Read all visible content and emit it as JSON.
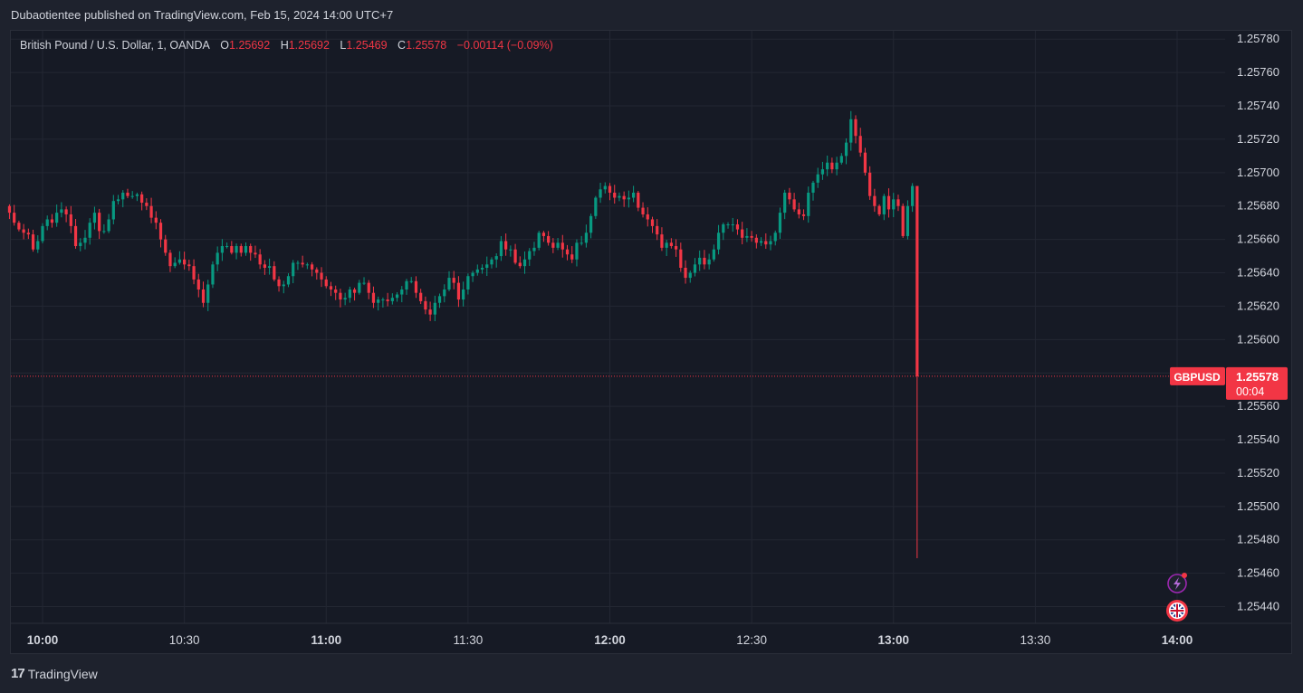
{
  "header": {
    "publisher_line": "Dubaotientee published on TradingView.com, Feb 15, 2024 14:00 UTC+7"
  },
  "legend": {
    "symbol_line": "British Pound / U.S. Dollar, 1, OANDA",
    "o_label": "O",
    "o_value": "1.25692",
    "h_label": "H",
    "h_value": "1.25692",
    "l_label": "L",
    "l_value": "1.25469",
    "c_label": "C",
    "c_value": "1.25578",
    "change": "−0.00114 (−0.09%)"
  },
  "price_label": {
    "ticker": "GBPUSD",
    "price": "1.25578",
    "countdown": "00:04"
  },
  "footer": {
    "brand": "TradingView",
    "brand_mark": "17"
  },
  "colors": {
    "up": "#089981",
    "down": "#f23645",
    "background": "#161a25",
    "grid": "#232733",
    "text": "#d1d4dc",
    "last_price_line": "#f23645"
  },
  "icons": [
    "flash-alert-icon",
    "uk-flag-icon"
  ],
  "chart_data": {
    "type": "candlestick",
    "symbol": "GBPUSD",
    "interval": "1",
    "ylim": [
      1.2543,
      1.25785
    ],
    "y_ticks": [
      "1.25780",
      "1.25760",
      "1.25740",
      "1.25720",
      "1.25700",
      "1.25680",
      "1.25660",
      "1.25640",
      "1.25620",
      "1.25600",
      "1.25580",
      "1.25560",
      "1.25540",
      "1.25520",
      "1.25500",
      "1.25480",
      "1.25460",
      "1.25440"
    ],
    "x_ticks": [
      "10:00",
      "10:30",
      "11:00",
      "11:30",
      "12:00",
      "12:30",
      "13:00",
      "13:30",
      "14:00"
    ],
    "x_tick_bold": [
      true,
      false,
      true,
      false,
      true,
      false,
      true,
      false,
      true
    ],
    "time_start": "09:53",
    "closes": [
      1.25676,
      1.2567,
      1.25666,
      1.25664,
      1.25663,
      1.25654,
      1.25659,
      1.25668,
      1.25672,
      1.2567,
      1.25676,
      1.25678,
      1.25675,
      1.25668,
      1.25656,
      1.25658,
      1.25661,
      1.2567,
      1.25676,
      1.25665,
      1.25665,
      1.25672,
      1.25683,
      1.25684,
      1.25688,
      1.25686,
      1.25686,
      1.25687,
      1.25682,
      1.2568,
      1.25673,
      1.2567,
      1.2566,
      1.25652,
      1.25644,
      1.25646,
      1.25648,
      1.25645,
      1.25644,
      1.25636,
      1.2563,
      1.25622,
      1.25633,
      1.25645,
      1.25652,
      1.25656,
      1.25656,
      1.25652,
      1.25656,
      1.25652,
      1.25656,
      1.25652,
      1.25651,
      1.25645,
      1.25643,
      1.25644,
      1.25636,
      1.25632,
      1.25633,
      1.25638,
      1.25646,
      1.25646,
      1.25645,
      1.25645,
      1.25642,
      1.2564,
      1.25636,
      1.25632,
      1.2563,
      1.25628,
      1.25624,
      1.25625,
      1.2563,
      1.25628,
      1.25634,
      1.25634,
      1.25628,
      1.25622,
      1.25624,
      1.25624,
      1.25623,
      1.25625,
      1.25627,
      1.2563,
      1.25635,
      1.25635,
      1.25628,
      1.25623,
      1.25618,
      1.25615,
      1.25622,
      1.25626,
      1.2563,
      1.25637,
      1.25634,
      1.25624,
      1.2563,
      1.25638,
      1.2564,
      1.25642,
      1.25643,
      1.25645,
      1.25648,
      1.2565,
      1.25659,
      1.25654,
      1.25654,
      1.25646,
      1.25644,
      1.25648,
      1.25653,
      1.25655,
      1.25664,
      1.25662,
      1.25658,
      1.25655,
      1.25658,
      1.25654,
      1.25651,
      1.25648,
      1.25658,
      1.25658,
      1.25664,
      1.25674,
      1.25685,
      1.2569,
      1.25692,
      1.25688,
      1.25685,
      1.25686,
      1.25684,
      1.25685,
      1.25688,
      1.25679,
      1.25675,
      1.25672,
      1.25668,
      1.25663,
      1.25655,
      1.25658,
      1.25656,
      1.25654,
      1.25643,
      1.25637,
      1.2564,
      1.25645,
      1.25649,
      1.25645,
      1.25648,
      1.25654,
      1.25664,
      1.25669,
      1.25669,
      1.25669,
      1.25666,
      1.25661,
      1.25662,
      1.25661,
      1.25658,
      1.25659,
      1.25657,
      1.25659,
      1.25664,
      1.25676,
      1.25688,
      1.25684,
      1.25678,
      1.25675,
      1.25674,
      1.25688,
      1.25694,
      1.25699,
      1.25702,
      1.25706,
      1.25702,
      1.25706,
      1.2571,
      1.25718,
      1.25732,
      1.25722,
      1.25712,
      1.257,
      1.25686,
      1.2568,
      1.25675,
      1.25686,
      1.25678,
      1.25684,
      1.2568,
      1.25662,
      1.2568,
      1.25692,
      1.25578
    ],
    "last_candle": {
      "open": 1.25692,
      "high": 1.25692,
      "low": 1.25469,
      "close": 1.25578
    }
  }
}
